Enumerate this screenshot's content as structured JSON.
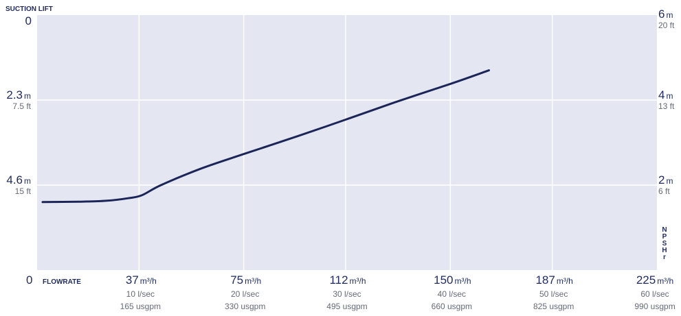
{
  "chart_data": {
    "type": "line",
    "title": "",
    "left_axis_title": "SUCTION LIFT",
    "bottom_axis_title": "FLOWRATE",
    "right_axis_title": "NPSHr",
    "x_axis": {
      "range": [
        0,
        225
      ],
      "unit": "m³/h",
      "zero_label": "0",
      "ticks": [
        {
          "value": 37,
          "main": "37",
          "unit": "m³/h",
          "sub1": "10 l/sec",
          "sub2": "165 usgpm"
        },
        {
          "value": 75,
          "main": "75",
          "unit": "m³/h",
          "sub1": "20 l/sec",
          "sub2": "330 usgpm"
        },
        {
          "value": 112,
          "main": "112",
          "unit": "m³/h",
          "sub1": "30 l/sec",
          "sub2": "495 usgpm"
        },
        {
          "value": 150,
          "main": "150",
          "unit": "m³/h",
          "sub1": "40 l/sec",
          "sub2": "660 usgpm"
        },
        {
          "value": 187,
          "main": "187",
          "unit": "m³/h",
          "sub1": "50 l/sec",
          "sub2": "825 usgpm"
        },
        {
          "value": 225,
          "main": "225",
          "unit": "m³/h",
          "sub1": "60 l/sec",
          "sub2": "990 usgpm"
        }
      ]
    },
    "left_axis": {
      "label": "Suction lift",
      "range": [
        0,
        6.9
      ],
      "direction": "downward",
      "ticks": [
        {
          "value": 0,
          "main": "0",
          "unit": "",
          "sub": ""
        },
        {
          "value": 2.3,
          "main": "2.3",
          "unit": "m",
          "sub": "7.5 ft"
        },
        {
          "value": 4.6,
          "main": "4.6",
          "unit": "m",
          "sub": "15 ft"
        },
        {
          "value": 6.9,
          "main": "",
          "unit": "",
          "sub": ""
        }
      ],
      "bottom_label": "0"
    },
    "right_axis": {
      "label": "NPSHr",
      "range": [
        0,
        6
      ],
      "ticks": [
        {
          "value": 6,
          "main": "6",
          "unit": "m",
          "sub": "20 ft"
        },
        {
          "value": 4,
          "main": "4",
          "unit": "m",
          "sub": "13 ft"
        },
        {
          "value": 2,
          "main": "2",
          "unit": "m",
          "sub": "6 ft"
        }
      ]
    },
    "grid": true,
    "series": [
      {
        "color": "#1c2558",
        "axis": "right",
        "points": [
          {
            "x": 2,
            "y": 1.6
          },
          {
            "x": 15,
            "y": 1.61
          },
          {
            "x": 25,
            "y": 1.63
          },
          {
            "x": 33,
            "y": 1.69
          },
          {
            "x": 38,
            "y": 1.76
          },
          {
            "x": 45,
            "y": 2.0
          },
          {
            "x": 60,
            "y": 2.4
          },
          {
            "x": 75,
            "y": 2.73
          },
          {
            "x": 95,
            "y": 3.16
          },
          {
            "x": 112,
            "y": 3.54
          },
          {
            "x": 130,
            "y": 3.95
          },
          {
            "x": 150,
            "y": 4.38
          },
          {
            "x": 164,
            "y": 4.7
          }
        ]
      }
    ]
  }
}
